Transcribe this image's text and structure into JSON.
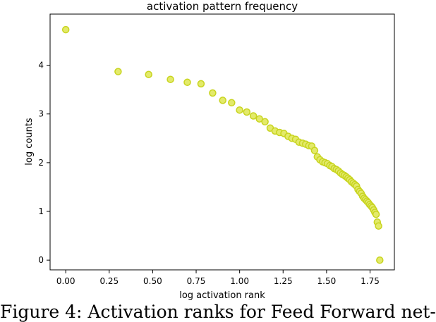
{
  "chart_data": {
    "type": "scatter",
    "title": "activation pattern frequency",
    "xlabel": "log activation rank",
    "ylabel": "log counts",
    "xlim": [
      -0.09,
      1.89
    ],
    "ylim": [
      -0.2,
      5.05
    ],
    "xticks": [
      0.0,
      0.25,
      0.5,
      0.75,
      1.0,
      1.25,
      1.5,
      1.75
    ],
    "xtick_labels": [
      "0.00",
      "0.25",
      "0.50",
      "0.75",
      "1.00",
      "1.25",
      "1.50",
      "1.75"
    ],
    "yticks": [
      0,
      1,
      2,
      3,
      4
    ],
    "ytick_labels": [
      "0",
      "1",
      "2",
      "3",
      "4"
    ],
    "grid": false,
    "marker_color": "#c8d41f",
    "marker_fill": "#e3ea6a",
    "series": [
      {
        "x": [
          0.0,
          0.301,
          0.477,
          0.602,
          0.699,
          0.778,
          0.845,
          0.903,
          0.954,
          1.0,
          1.041,
          1.079,
          1.114,
          1.146,
          1.176,
          1.204,
          1.23,
          1.255,
          1.279,
          1.301,
          1.322,
          1.342,
          1.362,
          1.38,
          1.398,
          1.415,
          1.431,
          1.447,
          1.462,
          1.477,
          1.491,
          1.505,
          1.519,
          1.531,
          1.544,
          1.556,
          1.568,
          1.58,
          1.591,
          1.602,
          1.613,
          1.623,
          1.633,
          1.643,
          1.653,
          1.663,
          1.672,
          1.681,
          1.69,
          1.699,
          1.708,
          1.716,
          1.724,
          1.732,
          1.74,
          1.748,
          1.756,
          1.763,
          1.771,
          1.778,
          1.785,
          1.792,
          1.799,
          1.806
        ],
        "y": [
          4.73,
          3.87,
          3.81,
          3.71,
          3.65,
          3.62,
          3.43,
          3.28,
          3.23,
          3.08,
          3.04,
          2.96,
          2.9,
          2.84,
          2.71,
          2.65,
          2.62,
          2.6,
          2.54,
          2.5,
          2.48,
          2.42,
          2.4,
          2.38,
          2.35,
          2.34,
          2.25,
          2.12,
          2.06,
          2.02,
          2.0,
          1.98,
          1.94,
          1.92,
          1.88,
          1.86,
          1.83,
          1.79,
          1.76,
          1.74,
          1.71,
          1.68,
          1.65,
          1.61,
          1.58,
          1.55,
          1.52,
          1.45,
          1.41,
          1.37,
          1.31,
          1.27,
          1.24,
          1.21,
          1.18,
          1.14,
          1.11,
          1.08,
          1.03,
          0.98,
          0.94,
          0.78,
          0.7,
          0.0
        ]
      }
    ]
  },
  "caption": "Figure 4: Activation ranks for Feed Forward net-"
}
